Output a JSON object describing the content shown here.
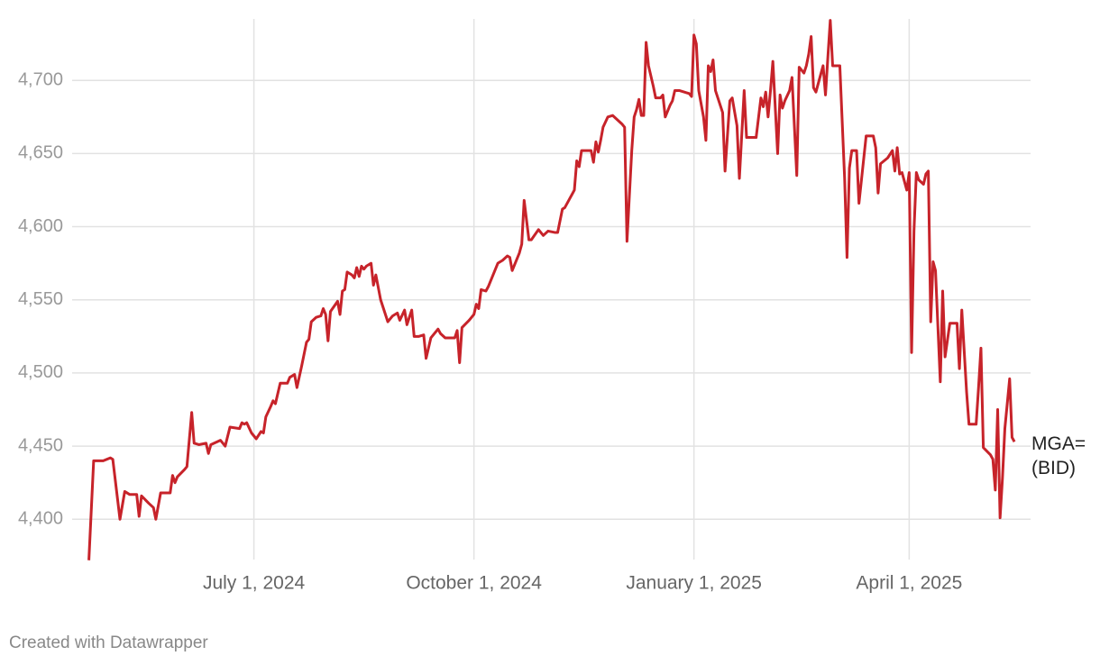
{
  "chart_data": {
    "type": "line",
    "credit": "Created with Datawrapper",
    "xlim": [
      "2024-04-16",
      "2025-05-21"
    ],
    "xticks": [
      {
        "value": "2024-07-01",
        "label": "July 1, 2024"
      },
      {
        "value": "2024-10-01",
        "label": "October 1, 2024"
      },
      {
        "value": "2025-01-01",
        "label": "January 1, 2025"
      },
      {
        "value": "2025-04-01",
        "label": "April 1, 2025"
      }
    ],
    "ylim": [
      4370,
      4742
    ],
    "yticks": [
      {
        "value": 4400,
        "label": "4,400"
      },
      {
        "value": 4450,
        "label": "4,450"
      },
      {
        "value": 4500,
        "label": "4,500"
      },
      {
        "value": 4550,
        "label": "4,550"
      },
      {
        "value": 4600,
        "label": "4,600"
      },
      {
        "value": 4650,
        "label": "4,650"
      },
      {
        "value": 4700,
        "label": "4,700"
      }
    ],
    "grid": true,
    "x": [
      "2024-04-23",
      "2024-04-25",
      "2024-04-29",
      "2024-05-02",
      "2024-05-03",
      "2024-05-06",
      "2024-05-08",
      "2024-05-10",
      "2024-05-13",
      "2024-05-14",
      "2024-05-15",
      "2024-05-18",
      "2024-05-20",
      "2024-05-21",
      "2024-05-23",
      "2024-05-27",
      "2024-05-28",
      "2024-05-29",
      "2024-05-30",
      "2024-06-02",
      "2024-06-03",
      "2024-06-05",
      "2024-06-06",
      "2024-06-08",
      "2024-06-11",
      "2024-06-12",
      "2024-06-13",
      "2024-06-17",
      "2024-06-19",
      "2024-06-21",
      "2024-06-25",
      "2024-06-26",
      "2024-06-27",
      "2024-06-28",
      "2024-06-30",
      "2024-07-02",
      "2024-07-04",
      "2024-07-05",
      "2024-07-06",
      "2024-07-08",
      "2024-07-09",
      "2024-07-10",
      "2024-07-12",
      "2024-07-15",
      "2024-07-16",
      "2024-07-18",
      "2024-07-19",
      "2024-07-21",
      "2024-07-23",
      "2024-07-24",
      "2024-07-25",
      "2024-07-27",
      "2024-07-29",
      "2024-07-30",
      "2024-07-31",
      "2024-08-01",
      "2024-08-02",
      "2024-08-05",
      "2024-08-06",
      "2024-08-07",
      "2024-08-08",
      "2024-08-09",
      "2024-08-11",
      "2024-08-12",
      "2024-08-13",
      "2024-08-14",
      "2024-08-15",
      "2024-08-16",
      "2024-08-17",
      "2024-08-19",
      "2024-08-20",
      "2024-08-21",
      "2024-08-23",
      "2024-08-25",
      "2024-08-26",
      "2024-08-28",
      "2024-08-30",
      "2024-08-31",
      "2024-09-02",
      "2024-09-03",
      "2024-09-05",
      "2024-09-06",
      "2024-09-08",
      "2024-09-10",
      "2024-09-11",
      "2024-09-13",
      "2024-09-16",
      "2024-09-17",
      "2024-09-19",
      "2024-09-23",
      "2024-09-24",
      "2024-09-25",
      "2024-09-26",
      "2024-09-29",
      "2024-10-01",
      "2024-10-02",
      "2024-10-03",
      "2024-10-04",
      "2024-10-06",
      "2024-10-07",
      "2024-10-09",
      "2024-10-11",
      "2024-10-13",
      "2024-10-15",
      "2024-10-16",
      "2024-10-17",
      "2024-10-20",
      "2024-10-21",
      "2024-10-22",
      "2024-10-24",
      "2024-10-25",
      "2024-10-28",
      "2024-10-29",
      "2024-10-30",
      "2024-11-01",
      "2024-11-04",
      "2024-11-05",
      "2024-11-07",
      "2024-11-08",
      "2024-11-10",
      "2024-11-12",
      "2024-11-13",
      "2024-11-14",
      "2024-11-15",
      "2024-11-18",
      "2024-11-19",
      "2024-11-20",
      "2024-11-21",
      "2024-11-22",
      "2024-11-23",
      "2024-11-24",
      "2024-11-26",
      "2024-11-28",
      "2024-11-30",
      "2024-12-02",
      "2024-12-03",
      "2024-12-04",
      "2024-12-06",
      "2024-12-07",
      "2024-12-08",
      "2024-12-09",
      "2024-12-10",
      "2024-12-11",
      "2024-12-12",
      "2024-12-13",
      "2024-12-15",
      "2024-12-16",
      "2024-12-18",
      "2024-12-19",
      "2024-12-20",
      "2024-12-22",
      "2024-12-23",
      "2024-12-24",
      "2024-12-26",
      "2024-12-28",
      "2024-12-30",
      "2024-12-31",
      "2025-01-01",
      "2025-01-02",
      "2025-01-03",
      "2025-01-05",
      "2025-01-06",
      "2025-01-07",
      "2025-01-08",
      "2025-01-09",
      "2025-01-10",
      "2025-01-13",
      "2025-01-14",
      "2025-01-16",
      "2025-01-17",
      "2025-01-19",
      "2025-01-20",
      "2025-01-22",
      "2025-01-23",
      "2025-01-27",
      "2025-01-29",
      "2025-01-30",
      "2025-01-31",
      "2025-02-01",
      "2025-02-02",
      "2025-02-03",
      "2025-02-05",
      "2025-02-06",
      "2025-02-07",
      "2025-02-08",
      "2025-02-10",
      "2025-02-11",
      "2025-02-13",
      "2025-02-14",
      "2025-02-16",
      "2025-02-17",
      "2025-02-18",
      "2025-02-19",
      "2025-02-20",
      "2025-02-21",
      "2025-02-23",
      "2025-02-24",
      "2025-02-25",
      "2025-02-26",
      "2025-02-27",
      "2025-02-28",
      "2025-03-03",
      "2025-03-05",
      "2025-03-06",
      "2025-03-07",
      "2025-03-08",
      "2025-03-10",
      "2025-03-11",
      "2025-03-14",
      "2025-03-16",
      "2025-03-17",
      "2025-03-18",
      "2025-03-19",
      "2025-03-20",
      "2025-03-23",
      "2025-03-25",
      "2025-03-26",
      "2025-03-27",
      "2025-03-28",
      "2025-03-29",
      "2025-03-31",
      "2025-04-01",
      "2025-04-02",
      "2025-04-03",
      "2025-04-04",
      "2025-04-05",
      "2025-04-07",
      "2025-04-08",
      "2025-04-09",
      "2025-04-10",
      "2025-04-11",
      "2025-04-12",
      "2025-04-14",
      "2025-04-15",
      "2025-04-16",
      "2025-04-18",
      "2025-04-21",
      "2025-04-22",
      "2025-04-23",
      "2025-04-25",
      "2025-04-26",
      "2025-04-28",
      "2025-04-29",
      "2025-04-30",
      "2025-05-01",
      "2025-05-02",
      "2025-05-05",
      "2025-05-06",
      "2025-05-07",
      "2025-05-08",
      "2025-05-09",
      "2025-05-10",
      "2025-05-11",
      "2025-05-13",
      "2025-05-14",
      "2025-05-15"
    ],
    "series": [
      {
        "name": "MGA=\n(BID)",
        "color": "#c7232a",
        "values": [
          4372,
          4440,
          4440,
          4442,
          4441,
          4400,
          4419,
          4417,
          4417,
          4402,
          4416,
          4411,
          4408,
          4400,
          4418,
          4418,
          4430,
          4425,
          4429,
          4434,
          4436,
          4473,
          4452,
          4451,
          4452,
          4445,
          4451,
          4454,
          4450,
          4463,
          4462,
          4466,
          4465,
          4466,
          4459,
          4455,
          4460,
          4459,
          4470,
          4477,
          4481,
          4479,
          4493,
          4493,
          4497,
          4499,
          4490,
          4505,
          4521,
          4523,
          4535,
          4538,
          4539,
          4544,
          4540,
          4522,
          4542,
          4549,
          4540,
          4556,
          4557,
          4569,
          4567,
          4565,
          4572,
          4566,
          4573,
          4571,
          4573,
          4575,
          4560,
          4567,
          4550,
          4540,
          4535,
          4539,
          4541,
          4536,
          4543,
          4533,
          4543,
          4525,
          4525,
          4526,
          4510,
          4524,
          4530,
          4527,
          4524,
          4524,
          4529,
          4507,
          4531,
          4536,
          4540,
          4547,
          4544,
          4557,
          4556,
          4559,
          4567,
          4575,
          4577,
          4580,
          4579,
          4570,
          4582,
          4588,
          4618,
          4591,
          4591,
          4598,
          4596,
          4594,
          4597,
          4596,
          4596,
          4612,
          4613,
          4619,
          4625,
          4645,
          4641,
          4652,
          4652,
          4652,
          4644,
          4658,
          4651,
          4659,
          4668,
          4675,
          4676,
          4673,
          4670,
          4668,
          4590,
          4652,
          4675,
          4680,
          4687,
          4676,
          4676,
          4726,
          4710,
          4696,
          4688,
          4688,
          4690,
          4675,
          4683,
          4686,
          4693,
          4693,
          4692,
          4691,
          4689,
          4731,
          4725,
          4693,
          4675,
          4659,
          4710,
          4706,
          4714,
          4693,
          4678,
          4638,
          4686,
          4688,
          4669,
          4633,
          4693,
          4661,
          4661,
          4688,
          4682,
          4692,
          4675,
          4693,
          4713,
          4650,
          4690,
          4681,
          4686,
          4693,
          4702,
          4635,
          4709,
          4705,
          4710,
          4718,
          4730,
          4695,
          4692,
          4704,
          4710,
          4690,
          4716,
          4741,
          4710,
          4710,
          4633,
          4579,
          4640,
          4652,
          4652,
          4616,
          4662,
          4662,
          4662,
          4654,
          4623,
          4643,
          4647,
          4652,
          4638,
          4654,
          4636,
          4637,
          4625,
          4637,
          4514,
          4597,
          4637,
          4632,
          4629,
          4636,
          4638,
          4535,
          4576,
          4570,
          4494,
          4556,
          4511,
          4534,
          4534,
          4503,
          4543,
          4487,
          4465,
          4465,
          4465,
          4490,
          4517,
          4449,
          4444,
          4441,
          4420,
          4475,
          4401,
          4428,
          4462,
          4496,
          4456,
          4453
        ]
      }
    ]
  }
}
